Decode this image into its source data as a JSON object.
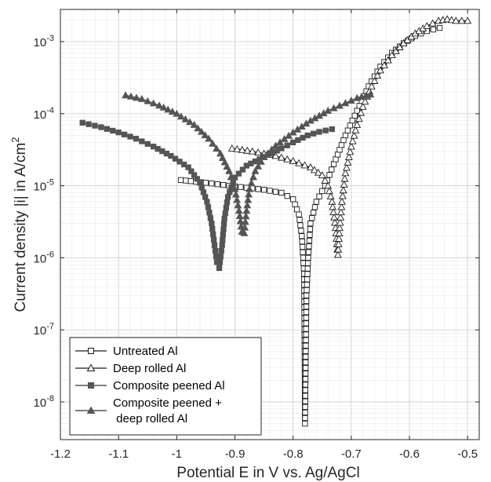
{
  "chart_data": {
    "type": "line",
    "xlabel": "Potential  E in V vs. Ag/AgCl",
    "ylabel": "Current density  |i| in A/cm2",
    "xlim": [
      -1.2,
      -0.48
    ],
    "ylim": [
      3e-09,
      0.0028
    ],
    "yscale": "log",
    "grid": true,
    "legend": "bottom-left",
    "xticks": [
      {
        "v": -1.2,
        "label": "-1.2"
      },
      {
        "v": -1.1,
        "label": "-1.1"
      },
      {
        "v": -1.0,
        "label": "-1"
      },
      {
        "v": -0.9,
        "label": "-0.9"
      },
      {
        "v": -0.8,
        "label": "-0.8"
      },
      {
        "v": -0.7,
        "label": "-0.7"
      },
      {
        "v": -0.6,
        "label": "-0.6"
      },
      {
        "v": -0.5,
        "label": "-0.5"
      }
    ],
    "yticks": [
      {
        "v": 1e-08,
        "base": "10",
        "exp": "-8"
      },
      {
        "v": 1e-07,
        "base": "10",
        "exp": "-7"
      },
      {
        "v": 1e-06,
        "base": "10",
        "exp": "-6"
      },
      {
        "v": 1e-05,
        "base": "10",
        "exp": "-5"
      },
      {
        "v": 0.0001,
        "base": "10",
        "exp": "-4"
      },
      {
        "v": 0.001,
        "base": "10",
        "exp": "-3"
      }
    ],
    "series": [
      {
        "name": "Untreated Al",
        "marker": "square-open",
        "color": "#1a1a1a",
        "points": [
          [
            -0.993,
            1.2e-05
          ],
          [
            -0.95,
            1.1e-05
          ],
          [
            -0.9,
            9.8e-06
          ],
          [
            -0.85,
            8.8e-06
          ],
          [
            -0.82,
            8e-06
          ],
          [
            -0.8,
            6.5e-06
          ],
          [
            -0.79,
            4e-06
          ],
          [
            -0.785,
            2e-06
          ],
          [
            -0.781,
            6e-07
          ],
          [
            -0.7795,
            5e-09
          ],
          [
            -0.777,
            3e-07
          ],
          [
            -0.774,
            1e-06
          ],
          [
            -0.77,
            3e-06
          ],
          [
            -0.76,
            6e-06
          ],
          [
            -0.745,
            1e-05
          ],
          [
            -0.73,
            2e-05
          ],
          [
            -0.71,
            5e-05
          ],
          [
            -0.69,
            0.00011
          ],
          [
            -0.67,
            0.00024
          ],
          [
            -0.65,
            0.00045
          ],
          [
            -0.63,
            0.0007
          ],
          [
            -0.61,
            0.00095
          ],
          [
            -0.59,
            0.0012
          ],
          [
            -0.57,
            0.0014
          ],
          [
            -0.548,
            0.00155
          ]
        ]
      },
      {
        "name": "Deep rolled Al",
        "marker": "triangle-open",
        "color": "#1a1a1a",
        "points": [
          [
            -0.905,
            3.3e-05
          ],
          [
            -0.87,
            3e-05
          ],
          [
            -0.83,
            2.6e-05
          ],
          [
            -0.8,
            2.2e-05
          ],
          [
            -0.77,
            1.8e-05
          ],
          [
            -0.75,
            1.4e-05
          ],
          [
            -0.74,
            1e-05
          ],
          [
            -0.733,
            6e-06
          ],
          [
            -0.727,
            2.6e-06
          ],
          [
            -0.723,
            1.1e-06
          ],
          [
            -0.72,
            2.6e-06
          ],
          [
            -0.716,
            6e-06
          ],
          [
            -0.71,
            1.5e-05
          ],
          [
            -0.7,
            3.5e-05
          ],
          [
            -0.69,
            7e-05
          ],
          [
            -0.68,
            0.000125
          ],
          [
            -0.665,
            0.00024
          ],
          [
            -0.65,
            0.0004
          ],
          [
            -0.63,
            0.00065
          ],
          [
            -0.61,
            0.00095
          ],
          [
            -0.59,
            0.0013
          ],
          [
            -0.57,
            0.00165
          ],
          [
            -0.55,
            0.00195
          ],
          [
            -0.535,
            0.00205
          ],
          [
            -0.52,
            0.00195
          ],
          [
            -0.5,
            0.00195
          ]
        ]
      },
      {
        "name": "Composite peened Al",
        "marker": "square-filled",
        "color": "#555555",
        "points": [
          [
            -1.162,
            7.5e-05
          ],
          [
            -1.13,
            6.5e-05
          ],
          [
            -1.1,
            5.5e-05
          ],
          [
            -1.07,
            4.5e-05
          ],
          [
            -1.04,
            3.5e-05
          ],
          [
            -1.01,
            2.6e-05
          ],
          [
            -0.98,
            1.8e-05
          ],
          [
            -0.96,
            1.1e-05
          ],
          [
            -0.948,
            6e-06
          ],
          [
            -0.94,
            3e-06
          ],
          [
            -0.935,
            1.5e-06
          ],
          [
            -0.931,
            8.7e-07
          ],
          [
            -0.927,
            7.2e-07
          ],
          [
            -0.922,
            1.5e-06
          ],
          [
            -0.918,
            3.5e-06
          ],
          [
            -0.912,
            7e-06
          ],
          [
            -0.9,
            1.3e-05
          ],
          [
            -0.88,
            1.9e-05
          ],
          [
            -0.85,
            2.5e-05
          ],
          [
            -0.82,
            3.3e-05
          ],
          [
            -0.8,
            4e-05
          ],
          [
            -0.775,
            5e-05
          ],
          [
            -0.755,
            5.6e-05
          ],
          [
            -0.733,
            6.1e-05
          ]
        ]
      },
      {
        "name": "Composite peened + deep rolled Al",
        "marker": "triangle-filled",
        "color": "#555555",
        "points": [
          [
            -1.088,
            0.00018
          ],
          [
            -1.06,
            0.00016
          ],
          [
            -1.03,
            0.00013
          ],
          [
            -1.0,
            0.0001
          ],
          [
            -0.97,
            7e-05
          ],
          [
            -0.945,
            4.5e-05
          ],
          [
            -0.925,
            2.8e-05
          ],
          [
            -0.91,
            1.6e-05
          ],
          [
            -0.9,
            9e-06
          ],
          [
            -0.893,
            4.5e-06
          ],
          [
            -0.888,
            2.3e-06
          ],
          [
            -0.884,
            2.2e-06
          ],
          [
            -0.88,
            4.5e-06
          ],
          [
            -0.875,
            9e-06
          ],
          [
            -0.865,
            1.6e-05
          ],
          [
            -0.85,
            2.5e-05
          ],
          [
            -0.83,
            3.6e-05
          ],
          [
            -0.8,
            5.5e-05
          ],
          [
            -0.77,
            8e-05
          ],
          [
            -0.74,
            0.00011
          ],
          [
            -0.71,
            0.00014
          ],
          [
            -0.69,
            0.000165
          ],
          [
            -0.667,
            0.000185
          ]
        ]
      }
    ],
    "legend_entries": {
      "untreated": "Untreated Al",
      "deep_rolled": "Deep rolled Al",
      "composite": "Composite peened Al",
      "composite_deep_line1": "Composite peened +",
      "composite_deep_line2": " deep rolled Al"
    }
  }
}
